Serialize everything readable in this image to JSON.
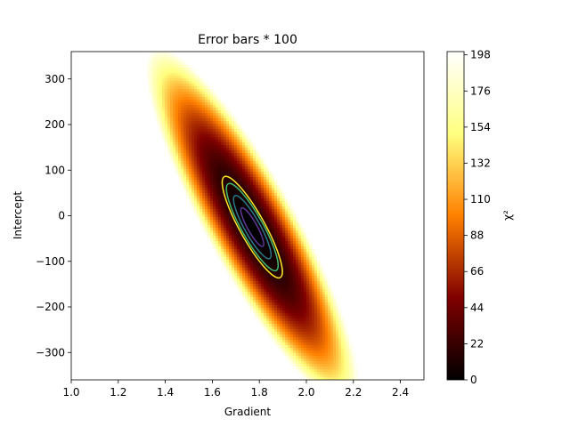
{
  "chart_data": {
    "type": "heatmap",
    "title": "Error bars * 100",
    "xlabel": "Gradient",
    "ylabel": "Intercept",
    "xlim": [
      1.0,
      2.5
    ],
    "ylim": [
      -360,
      360
    ],
    "x_ticks": [
      "1.0",
      "1.2",
      "1.4",
      "1.6",
      "1.8",
      "2.0",
      "2.2",
      "2.4"
    ],
    "y_ticks": [
      "−300",
      "−200",
      "−100",
      "0",
      "100",
      "200",
      "300"
    ],
    "colorbar": {
      "label": "χ²",
      "range": [
        0,
        200
      ],
      "ticks": [
        "0",
        "22",
        "44",
        "66",
        "88",
        "110",
        "132",
        "154",
        "176",
        "198"
      ],
      "colormap": "afmhot"
    },
    "minimum": {
      "gradient": 1.77,
      "intercept": -25,
      "chi2": 0
    },
    "contours": [
      {
        "level": 2.3,
        "color": "#5b3a9b"
      },
      {
        "level": 6.2,
        "color": "#2a788e"
      },
      {
        "level": 11.8,
        "color": "#3fbc73"
      },
      {
        "level": 16.0,
        "color": "#fde725"
      }
    ],
    "grid": false
  }
}
